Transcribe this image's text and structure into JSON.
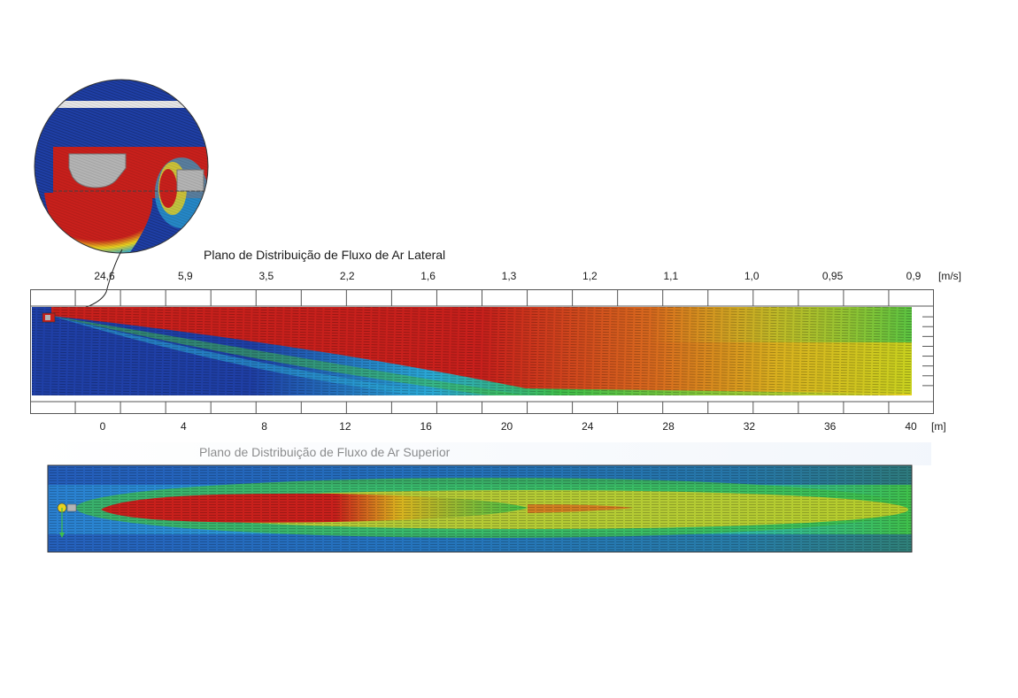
{
  "lateral": {
    "title": "Plano de Distribuição de Fluxo de Ar Lateral",
    "velocity_labels": [
      "24,6",
      "5,9",
      "3,5",
      "2,2",
      "1,6",
      "1,3",
      "1,2",
      "1,1",
      "1,0",
      "0,95",
      "0,9"
    ],
    "velocity_unit": "[m/s]",
    "distance_labels": [
      "0",
      "4",
      "8",
      "12",
      "16",
      "20",
      "24",
      "28",
      "32",
      "36",
      "40"
    ],
    "distance_unit": "[m]"
  },
  "top": {
    "title": "Plano de Distribuição de Fluxo de Ar Superior"
  },
  "colors": {
    "low": "#1f3fa6",
    "mid_low": "#2aa7d6",
    "mid": "#3fbf4a",
    "mid_high": "#e8d21f",
    "high": "#c8201c",
    "gray_part": "#b4b4b4"
  }
}
